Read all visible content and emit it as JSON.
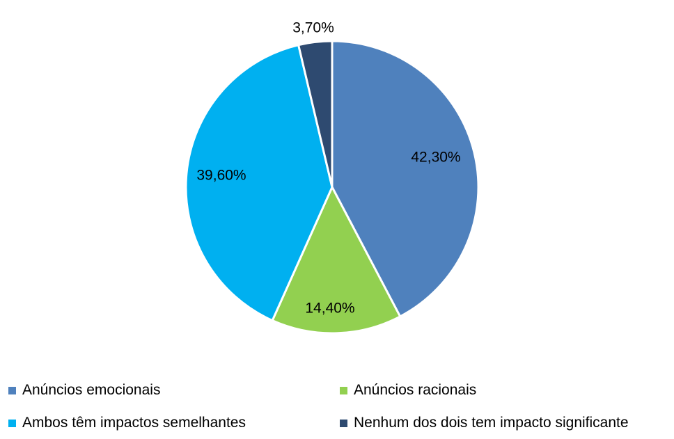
{
  "chart_data": {
    "type": "pie",
    "categories": [
      "Anúncios emocionais",
      "Anúncios racionais",
      "Ambos têm impactos semelhantes",
      "Nenhum dos dois tem impacto significante"
    ],
    "values": [
      42.3,
      14.4,
      39.6,
      3.7
    ],
    "labels": [
      "42,30%",
      "14,40%",
      "39,60%",
      "3,70%"
    ],
    "colors": [
      "#4F81BD",
      "#92D050",
      "#00B0F0",
      "#2E4A70"
    ],
    "start_angle": "12 o'clock",
    "direction": "clockwise",
    "legend_position": "bottom"
  },
  "legend": [
    {
      "label": "Anúncios emocionais",
      "color": "#4F81BD"
    },
    {
      "label": "Anúncios racionais",
      "color": "#92D050"
    },
    {
      "label": "Ambos têm impactos semelhantes",
      "color": "#00B0F0"
    },
    {
      "label": "Nenhum dos dois tem impacto significante",
      "color": "#2E4A70"
    }
  ]
}
